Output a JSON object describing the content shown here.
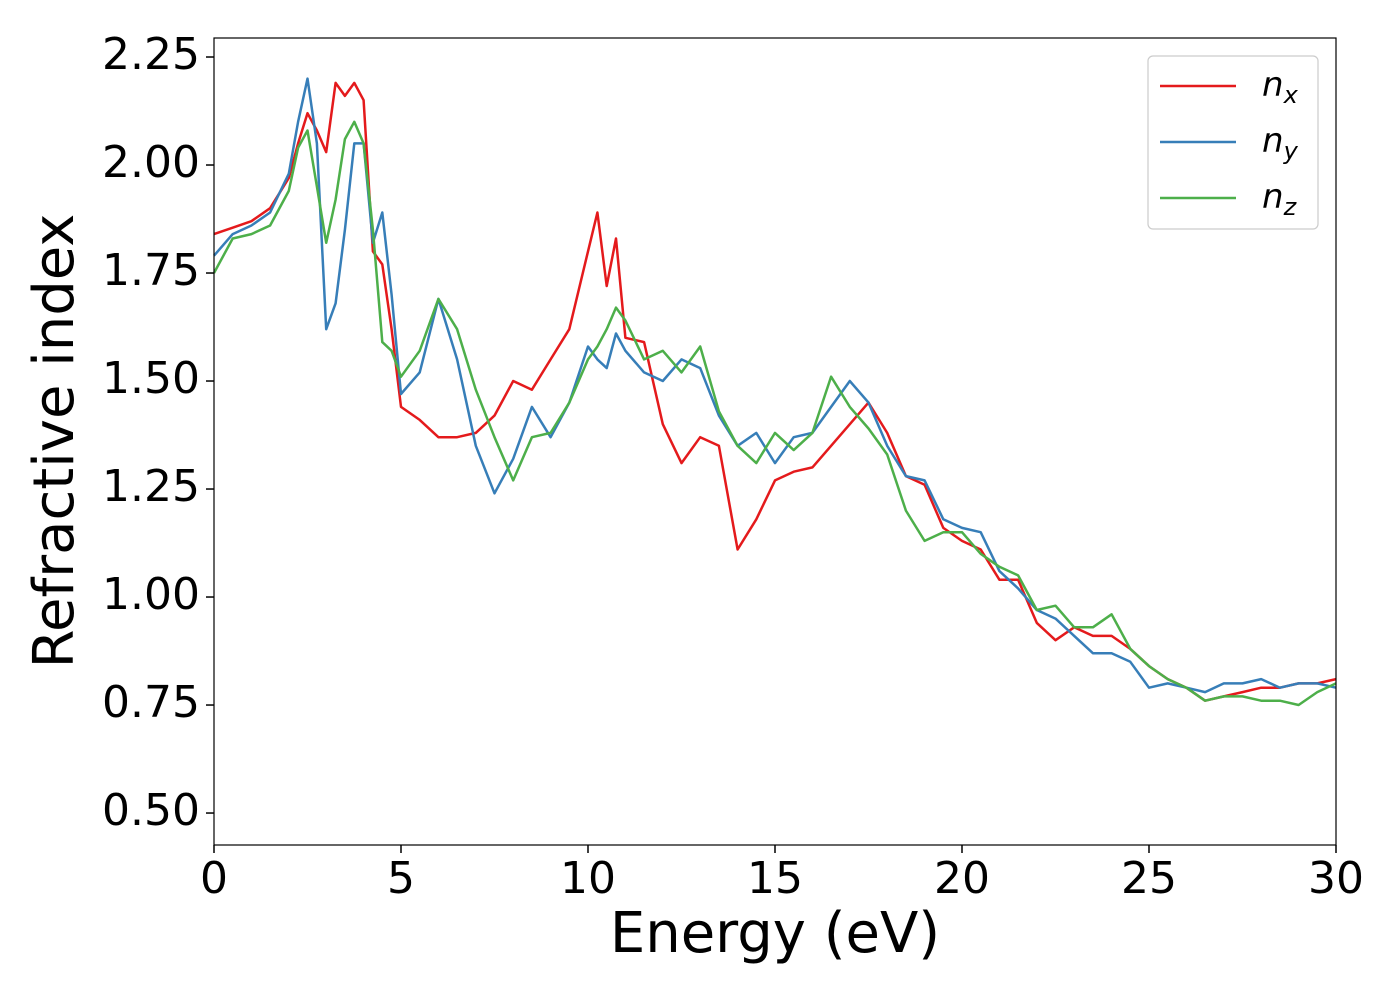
{
  "chart_data": {
    "type": "line",
    "xlabel": "Energy (eV)",
    "ylabel": "Refractive index",
    "xlim": [
      0,
      30
    ],
    "xticks": [
      0,
      5,
      10,
      15,
      20,
      25,
      30
    ],
    "ylim": [
      0.426,
      2.294
    ],
    "yticks": [
      {
        "value": 0.5,
        "label": "0.50"
      },
      0.75,
      {
        "value": 1,
        "label": "1.00"
      },
      1.25,
      {
        "value": 1.5,
        "label": "1.50"
      },
      1.75,
      {
        "value": 2,
        "label": "2.00"
      },
      2.25
    ],
    "legend": "upper right",
    "x": [
      0,
      0.5,
      1,
      1.5,
      2,
      2.25,
      2.5,
      2.75,
      3,
      3.25,
      3.5,
      3.75,
      4,
      4.25,
      4.5,
      4.75,
      5,
      5.5,
      6,
      6.5,
      7,
      7.5,
      8,
      8.5,
      9,
      9.5,
      10,
      10.25,
      10.5,
      10.75,
      11,
      11.5,
      12,
      12.5,
      13,
      13.5,
      14,
      14.5,
      15,
      15.5,
      16,
      16.5,
      17,
      17.5,
      18,
      18.5,
      19,
      19.5,
      20,
      20.5,
      21,
      21.5,
      22,
      22.5,
      23,
      23.5,
      24,
      24.5,
      25,
      25.5,
      26,
      26.5,
      27,
      27.5,
      28,
      28.5,
      29,
      29.5,
      30
    ],
    "series": [
      {
        "name": "nx",
        "color": "#e41a1c",
        "values": [
          1.84,
          1.855,
          1.87,
          1.9,
          1.97,
          2.05,
          2.12,
          2.08,
          2.03,
          2.19,
          2.16,
          2.19,
          2.15,
          1.8,
          1.77,
          1.62,
          1.44,
          1.41,
          1.37,
          1.37,
          1.38,
          1.42,
          1.5,
          1.48,
          1.55,
          1.62,
          1.8,
          1.89,
          1.72,
          1.83,
          1.6,
          1.59,
          1.4,
          1.31,
          1.37,
          1.35,
          1.11,
          1.18,
          1.27,
          1.29,
          1.3,
          1.35,
          1.4,
          1.45,
          1.38,
          1.28,
          1.26,
          1.16,
          1.13,
          1.11,
          1.04,
          1.04,
          0.94,
          0.9,
          0.93,
          0.91,
          0.91,
          0.88,
          0.84,
          0.81,
          0.79,
          0.76,
          0.77,
          0.78,
          0.79,
          0.79,
          0.8,
          0.8,
          0.81
        ]
      },
      {
        "name": "ny",
        "color": "#377eb8",
        "values": [
          1.79,
          1.84,
          1.86,
          1.89,
          1.98,
          2.1,
          2.2,
          2.05,
          1.62,
          1.68,
          1.85,
          2.05,
          2.05,
          1.82,
          1.89,
          1.7,
          1.47,
          1.52,
          1.69,
          1.55,
          1.35,
          1.24,
          1.32,
          1.44,
          1.37,
          1.45,
          1.58,
          1.55,
          1.53,
          1.61,
          1.57,
          1.52,
          1.5,
          1.55,
          1.53,
          1.42,
          1.35,
          1.38,
          1.31,
          1.37,
          1.38,
          1.44,
          1.5,
          1.45,
          1.35,
          1.28,
          1.27,
          1.18,
          1.16,
          1.15,
          1.06,
          1.02,
          0.97,
          0.95,
          0.91,
          0.87,
          0.87,
          0.85,
          0.79,
          0.8,
          0.79,
          0.78,
          0.8,
          0.8,
          0.81,
          0.79,
          0.8,
          0.8,
          0.79
        ]
      },
      {
        "name": "nz",
        "color": "#4daf4a",
        "values": [
          1.75,
          1.83,
          1.84,
          1.86,
          1.94,
          2.04,
          2.08,
          1.95,
          1.82,
          1.92,
          2.06,
          2.1,
          2.05,
          1.85,
          1.59,
          1.57,
          1.51,
          1.57,
          1.69,
          1.62,
          1.48,
          1.37,
          1.27,
          1.37,
          1.38,
          1.45,
          1.55,
          1.58,
          1.62,
          1.67,
          1.64,
          1.55,
          1.57,
          1.52,
          1.58,
          1.43,
          1.35,
          1.31,
          1.38,
          1.34,
          1.38,
          1.51,
          1.44,
          1.39,
          1.33,
          1.2,
          1.13,
          1.15,
          1.15,
          1.1,
          1.07,
          1.05,
          0.97,
          0.98,
          0.93,
          0.93,
          0.96,
          0.88,
          0.84,
          0.81,
          0.79,
          0.76,
          0.77,
          0.77,
          0.76,
          0.76,
          0.75,
          0.78,
          0.8
        ]
      }
    ]
  }
}
